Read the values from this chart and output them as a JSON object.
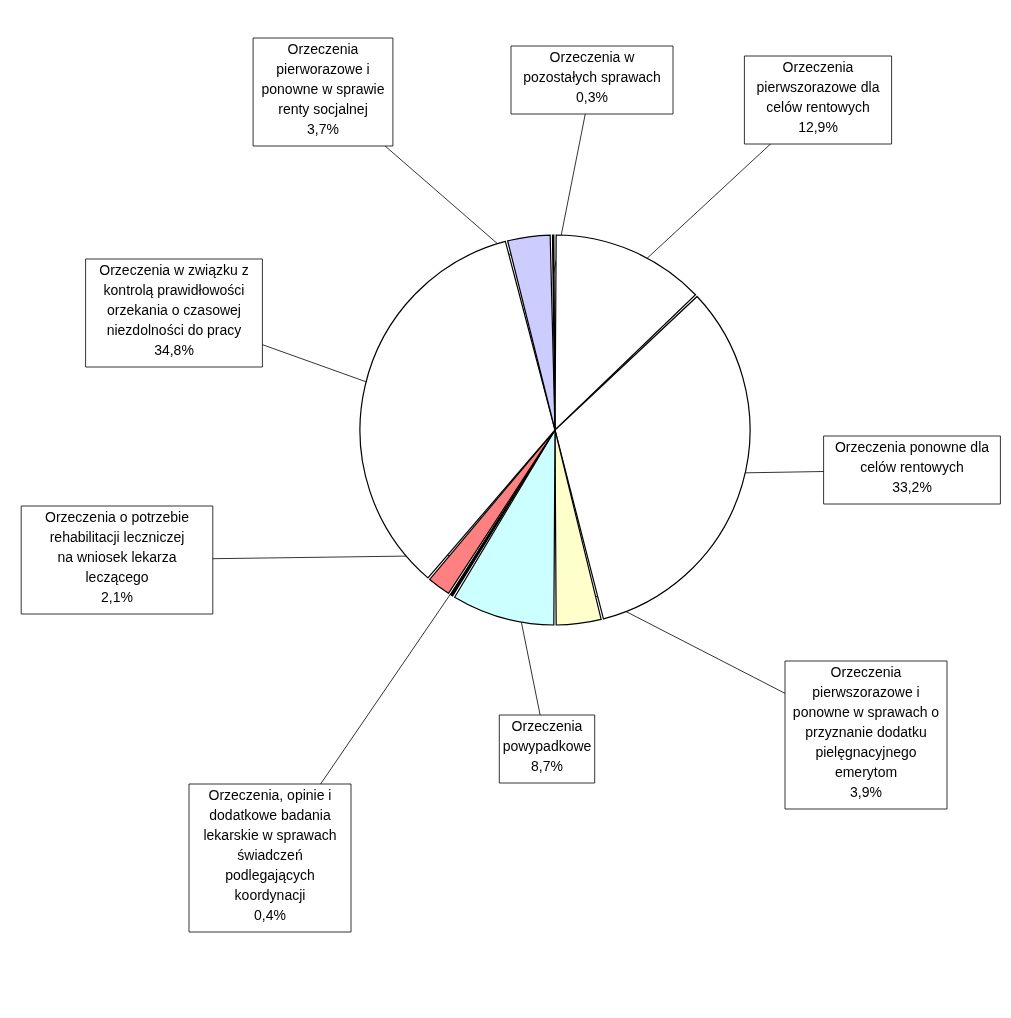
{
  "chart_data": {
    "type": "pie",
    "categories": [
      "Orzeczenia pierwszorazowe dla celów rentowych",
      "Orzeczenia ponowne dla celów rentowych",
      "Orzeczenia pierwszorazowe i ponowne w sprawach o przyznanie dodatku pielęgnacyjnego emerytom",
      "Orzeczenia powypadkowe",
      "Orzeczenia, opinie i dodatkowe badania lekarskie w sprawach świadczeń podlegających koordynacji",
      "Orzeczenia o potrzebie rehabilitacji leczniczej na wniosek lekarza leczącego",
      "Orzeczenia w związku z kontrolą prawidłowości orzekania o czasowej niezdolności do pracy",
      "Orzeczenia pierworazowe i ponowne w sprawie renty socjalnej",
      "Orzeczenia w pozostałych sprawach"
    ],
    "values": [
      12.9,
      33.2,
      3.9,
      8.7,
      0.4,
      2.1,
      34.8,
      3.7,
      0.3
    ],
    "value_labels": [
      "12,9%",
      "33,2%",
      "3,9%",
      "8,7%",
      "0,4%",
      "2,1%",
      "34,8%",
      "3,7%",
      "0,3%"
    ],
    "colors": [
      "#ffffff",
      "#ffffff",
      "#ffffcc",
      "#ccffff",
      "#000000",
      "#ff8080",
      "#ffffff",
      "#ccccff",
      "#000000"
    ]
  }
}
